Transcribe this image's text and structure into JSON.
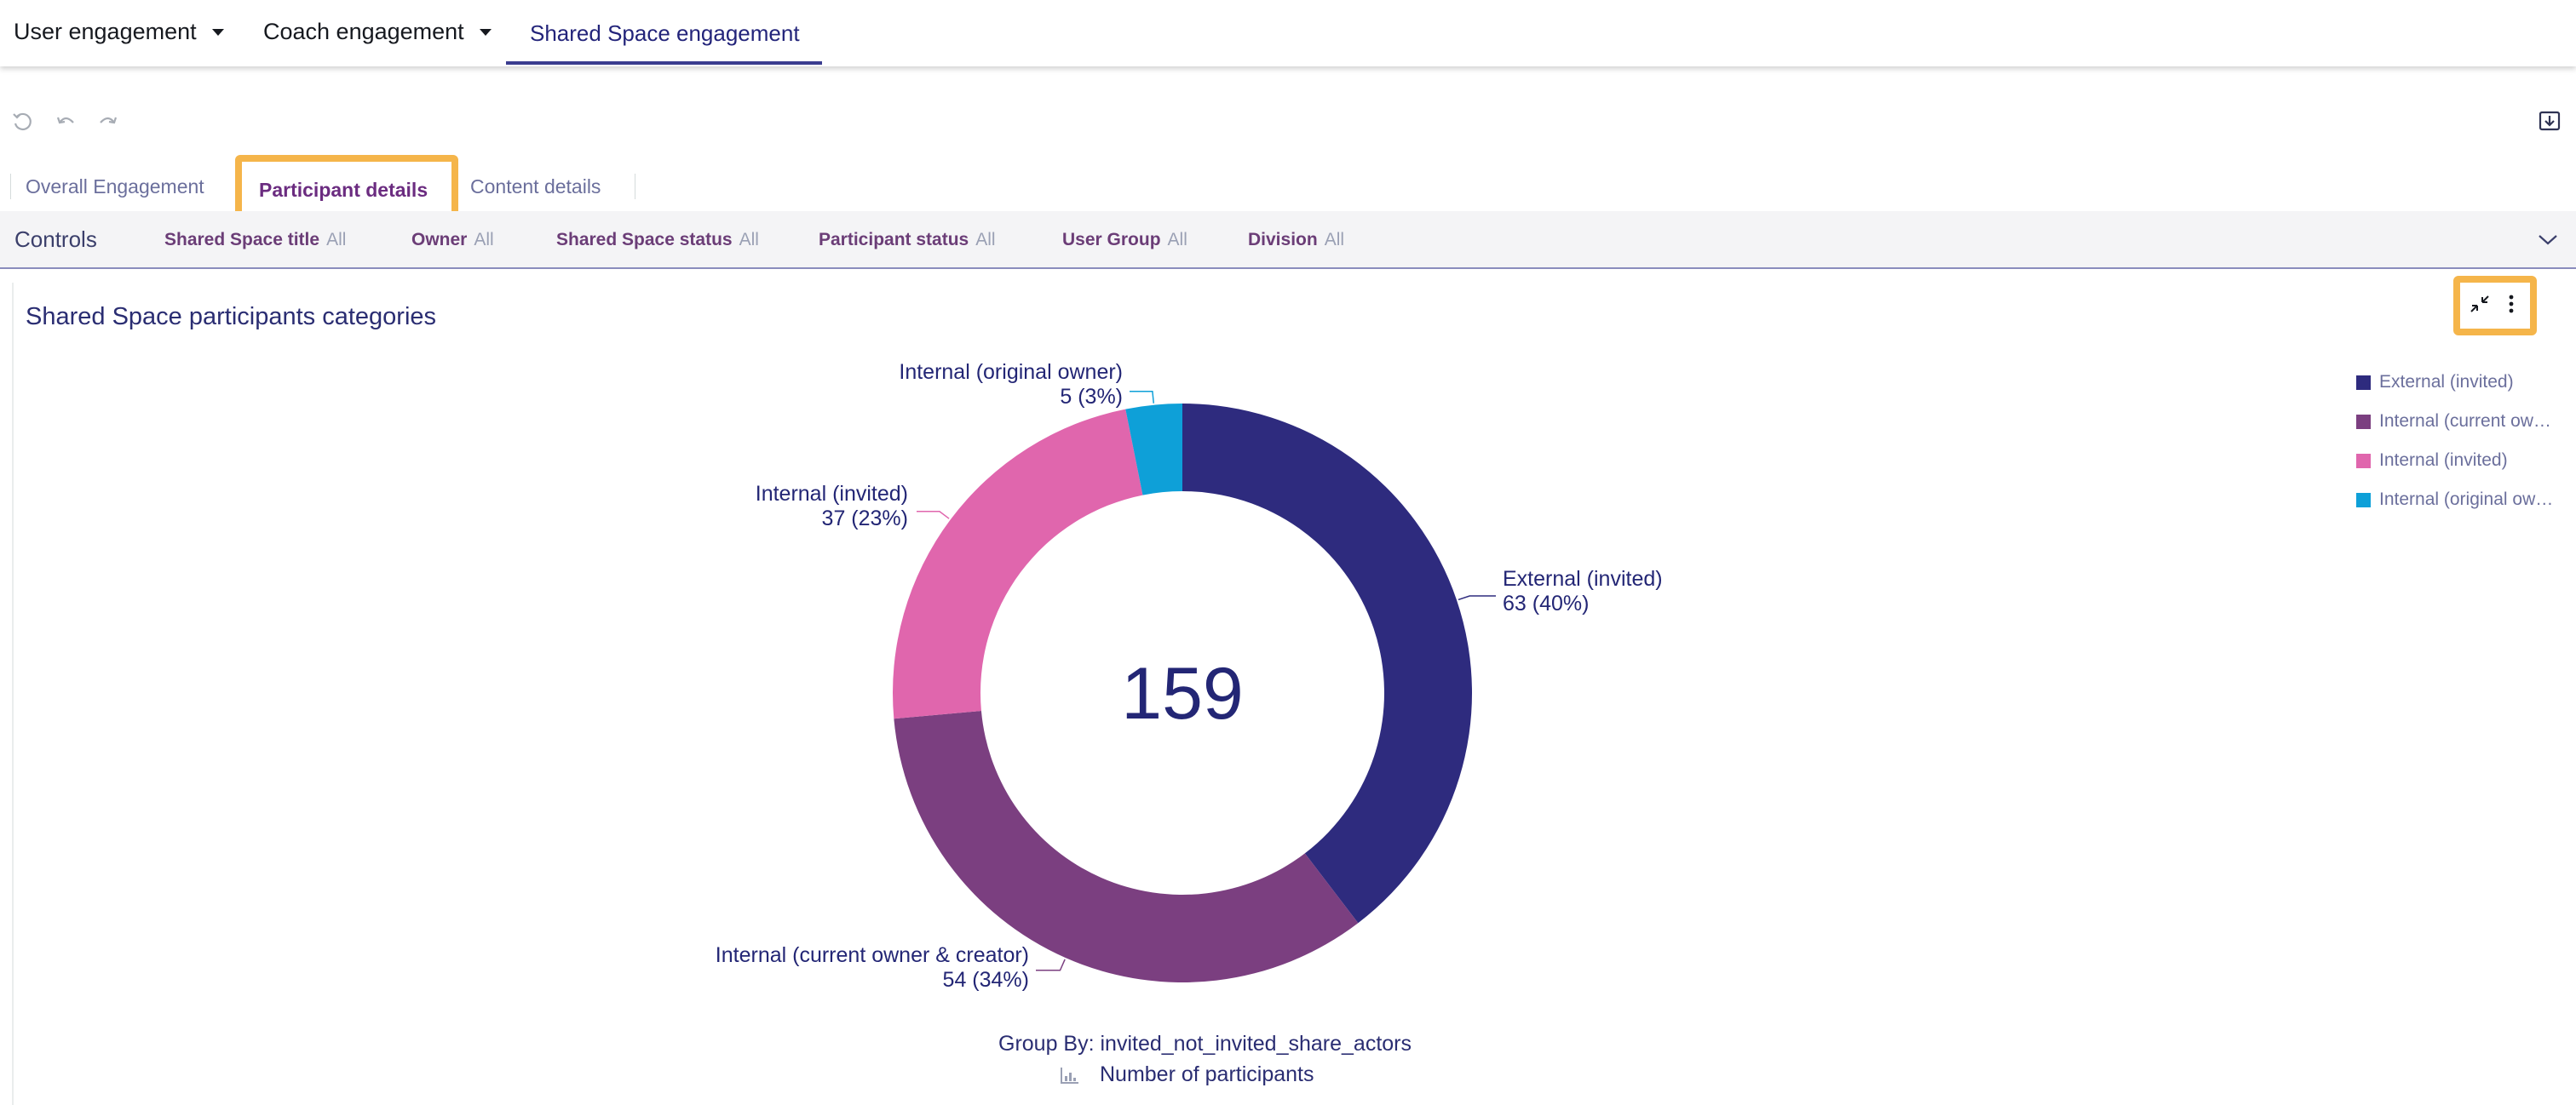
{
  "nav": {
    "items": [
      {
        "label": "User engagement",
        "has_caret": true
      },
      {
        "label": "Coach engagement",
        "has_caret": true
      },
      {
        "label": "Shared Space engagement",
        "active": true
      }
    ]
  },
  "toolbar": {
    "icons": [
      "reset-icon",
      "undo-icon",
      "redo-icon",
      "download-icon"
    ]
  },
  "sheet_tabs": [
    {
      "label": "Overall Engagement"
    },
    {
      "label": "Participant details",
      "active": true
    },
    {
      "label": "Content details"
    }
  ],
  "controls": {
    "label": "Controls",
    "filters": [
      {
        "name": "Shared Space title",
        "value": "All"
      },
      {
        "name": "Owner",
        "value": "All"
      },
      {
        "name": "Shared Space status",
        "value": "All"
      },
      {
        "name": "Participant status",
        "value": "All"
      },
      {
        "name": "User Group",
        "value": "All"
      },
      {
        "name": "Division",
        "value": "All"
      }
    ]
  },
  "visual": {
    "title": "Shared Space participants categories",
    "center_total": "159",
    "group_by": "Group By: invited_not_invited_share_actors",
    "metric": "Number of participants",
    "legend": [
      {
        "label": "External (invited)",
        "color": "#2e2b7e"
      },
      {
        "label": "Internal (current owner & creator)",
        "color": "#7b3f80"
      },
      {
        "label": "Internal (invited)",
        "color": "#e066ad"
      },
      {
        "label": "Internal (original owner)",
        "color": "#0ea0d8"
      }
    ]
  },
  "chart_data": {
    "type": "pie",
    "variant": "donut",
    "title": "Shared Space participants categories",
    "center_label": "159",
    "categories": [
      "External (invited)",
      "Internal (current owner & creator)",
      "Internal (invited)",
      "Internal (original owner)"
    ],
    "values": [
      63,
      54,
      37,
      5
    ],
    "percent_labels": [
      "63 (40%)",
      "54 (34%)",
      "37 (23%)",
      "5 (3%)"
    ],
    "colors": [
      "#2e2b7e",
      "#7b3f80",
      "#e066ad",
      "#0ea0d8"
    ],
    "legend_position": "right"
  }
}
